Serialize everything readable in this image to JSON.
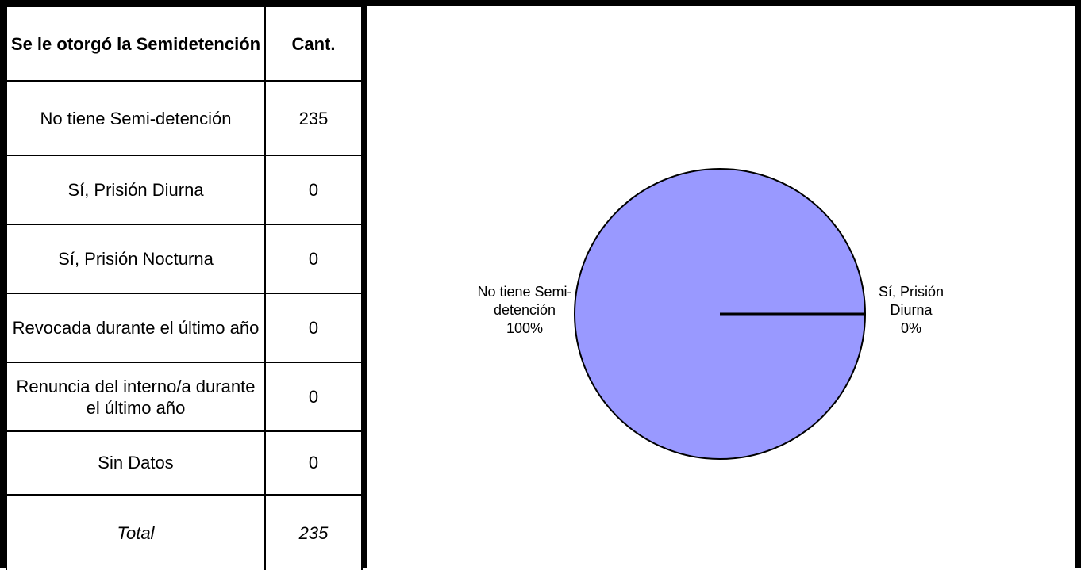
{
  "table": {
    "header": {
      "category": "Se le otorgó la Semidetención",
      "count": "Cant."
    },
    "rows": [
      {
        "label": "No tiene Semi-detención",
        "value": "235"
      },
      {
        "label": "Sí, Prisión Diurna",
        "value": "0"
      },
      {
        "label": "Sí, Prisión Nocturna",
        "value": "0"
      },
      {
        "label": "Revocada durante el último año",
        "value": "0"
      },
      {
        "label": "Renuncia del interno/a durante el último año",
        "value": "0"
      },
      {
        "label": "Sin Datos",
        "value": "0"
      }
    ],
    "total": {
      "label": "Total",
      "value": "235"
    }
  },
  "chart_data": {
    "type": "pie",
    "categories": [
      "No tiene Semi-detención",
      "Sí, Prisión Diurna"
    ],
    "values": [
      235,
      0
    ],
    "labels": [
      {
        "lines": [
          "No tiene Semi-",
          "detención",
          "100%"
        ]
      },
      {
        "lines": [
          "Sí, Prisión",
          "Diurna",
          "0%"
        ]
      }
    ],
    "colors": [
      "#9999ff",
      "#9999ff"
    ],
    "title": "",
    "legend": "none"
  }
}
